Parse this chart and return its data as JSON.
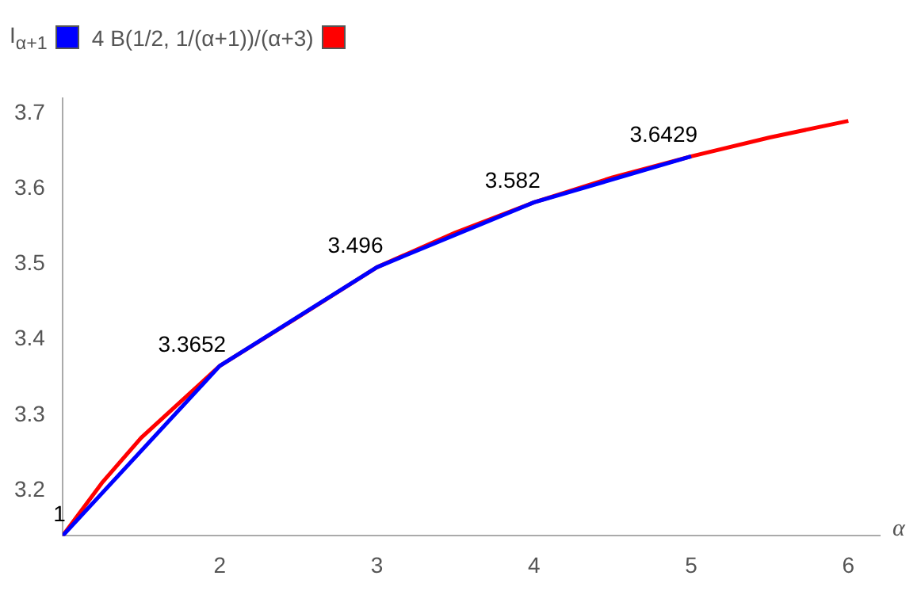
{
  "chart_data": {
    "type": "line",
    "xlabel": "α",
    "legend": "top left",
    "marker": "none",
    "grid": false,
    "xlim": [
      1,
      6.2
    ],
    "xticks": [
      2,
      3,
      4,
      5,
      6
    ],
    "ylim": [
      3.14,
      3.72
    ],
    "yticks": [
      3.2,
      3.3,
      3.4,
      3.5,
      3.6,
      3.7
    ],
    "series": [
      {
        "name": "I$_{α+1}$",
        "color": "#0000ff",
        "x": [
          1,
          2,
          3,
          4,
          5
        ],
        "values": [
          3.14,
          3.3652,
          3.496,
          3.582,
          3.6429
        ],
        "value_labels": [
          null,
          "3.3652",
          "3.496",
          "3.582",
          "3.6429"
        ]
      },
      {
        "name": "4 B(1/2, 1/(α+1))/(α+3)",
        "color": "#ff0000",
        "x": [
          1,
          1.25,
          1.5,
          2,
          2.5,
          3,
          3.5,
          4,
          4.5,
          5,
          5.5,
          6
        ],
        "values": [
          3.14,
          3.21,
          3.27,
          3.3652,
          3.43,
          3.496,
          3.542,
          3.582,
          3.615,
          3.6429,
          3.668,
          3.69
        ]
      }
    ],
    "annotations": [
      {
        "text": "1",
        "x": 1,
        "y": 3.14
      }
    ]
  }
}
